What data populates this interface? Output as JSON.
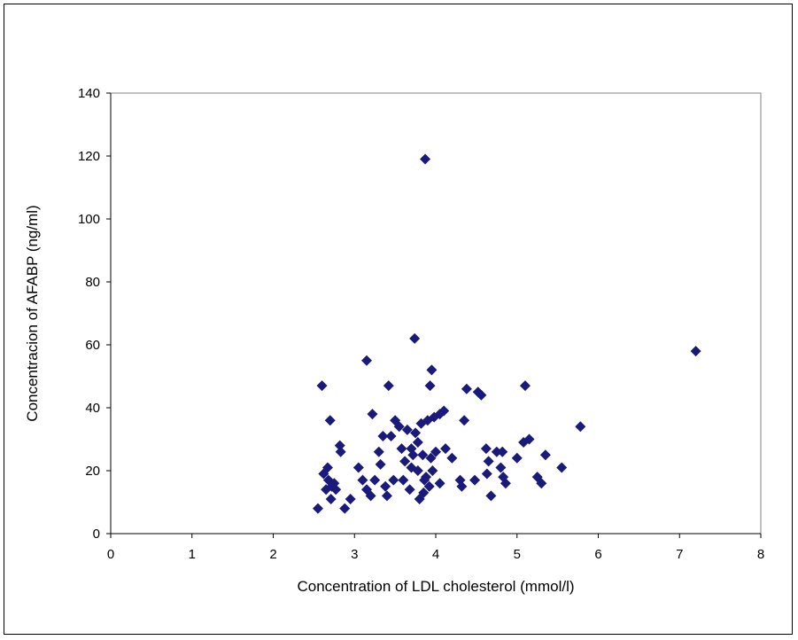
{
  "chart_data": {
    "type": "scatter",
    "title": "",
    "xlabel": "Concentration of LDL cholesterol (mmol/l)",
    "ylabel": "Concentracion of AFABP (ng/ml)",
    "xlim": [
      0,
      8
    ],
    "ylim": [
      0,
      140
    ],
    "x_ticks": [
      "0",
      "1",
      "2",
      "3",
      "4",
      "5",
      "6",
      "7",
      "8"
    ],
    "y_ticks": [
      "0",
      "20",
      "40",
      "60",
      "80",
      "100",
      "120",
      "140"
    ],
    "grid": false,
    "legend": "none",
    "marker": "diamond",
    "marker_color": "#1a1a7a",
    "points": [
      [
        2.55,
        8
      ],
      [
        2.6,
        47
      ],
      [
        2.62,
        19
      ],
      [
        2.65,
        14
      ],
      [
        2.67,
        21
      ],
      [
        2.68,
        17
      ],
      [
        2.7,
        36
      ],
      [
        2.71,
        11
      ],
      [
        2.72,
        15
      ],
      [
        2.75,
        16
      ],
      [
        2.77,
        14
      ],
      [
        2.82,
        28
      ],
      [
        2.83,
        26
      ],
      [
        2.88,
        8
      ],
      [
        2.95,
        11
      ],
      [
        3.05,
        21
      ],
      [
        3.1,
        17
      ],
      [
        3.15,
        55
      ],
      [
        3.15,
        14
      ],
      [
        3.2,
        12
      ],
      [
        3.22,
        38
      ],
      [
        3.25,
        17
      ],
      [
        3.3,
        26
      ],
      [
        3.32,
        22
      ],
      [
        3.35,
        31
      ],
      [
        3.38,
        15
      ],
      [
        3.4,
        12
      ],
      [
        3.42,
        47
      ],
      [
        3.45,
        31
      ],
      [
        3.48,
        17
      ],
      [
        3.5,
        36
      ],
      [
        3.55,
        34
      ],
      [
        3.58,
        27
      ],
      [
        3.6,
        17
      ],
      [
        3.62,
        23
      ],
      [
        3.65,
        33
      ],
      [
        3.68,
        14
      ],
      [
        3.7,
        21
      ],
      [
        3.7,
        27
      ],
      [
        3.72,
        25
      ],
      [
        3.74,
        62
      ],
      [
        3.75,
        32
      ],
      [
        3.78,
        20
      ],
      [
        3.78,
        29
      ],
      [
        3.8,
        11
      ],
      [
        3.82,
        35
      ],
      [
        3.84,
        25
      ],
      [
        3.85,
        13
      ],
      [
        3.86,
        17
      ],
      [
        3.87,
        119
      ],
      [
        3.88,
        18
      ],
      [
        3.9,
        36
      ],
      [
        3.92,
        15
      ],
      [
        3.93,
        47
      ],
      [
        3.94,
        24
      ],
      [
        3.95,
        52
      ],
      [
        3.96,
        20
      ],
      [
        3.98,
        37
      ],
      [
        4.0,
        26
      ],
      [
        4.05,
        38
      ],
      [
        4.05,
        16
      ],
      [
        4.1,
        39
      ],
      [
        4.12,
        27
      ],
      [
        4.2,
        24
      ],
      [
        4.3,
        17
      ],
      [
        4.32,
        15
      ],
      [
        4.35,
        36
      ],
      [
        4.38,
        46
      ],
      [
        4.48,
        17
      ],
      [
        4.52,
        45
      ],
      [
        4.56,
        44
      ],
      [
        4.62,
        27
      ],
      [
        4.63,
        19
      ],
      [
        4.65,
        23
      ],
      [
        4.68,
        12
      ],
      [
        4.75,
        26
      ],
      [
        4.8,
        21
      ],
      [
        4.82,
        26
      ],
      [
        4.83,
        18
      ],
      [
        4.86,
        16
      ],
      [
        5.0,
        24
      ],
      [
        5.08,
        29
      ],
      [
        5.1,
        47
      ],
      [
        5.15,
        30
      ],
      [
        5.25,
        18
      ],
      [
        5.3,
        16
      ],
      [
        5.35,
        25
      ],
      [
        5.55,
        21
      ],
      [
        5.78,
        34
      ],
      [
        7.2,
        58
      ]
    ]
  }
}
